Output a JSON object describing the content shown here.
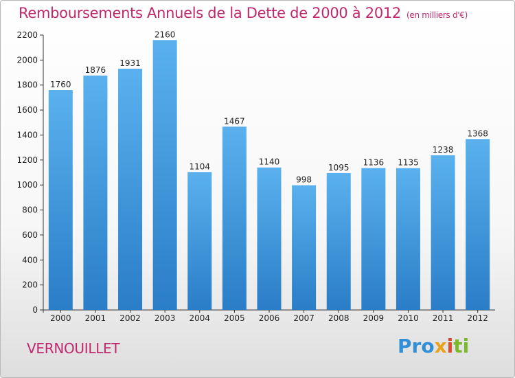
{
  "title": "Remboursements Annuels de la Dette de 2000 à 2012",
  "unit_label": "(en milliers d'€)",
  "place_name": "VERNOUILLET",
  "logo": {
    "parts": [
      "Pro",
      "x",
      "i",
      "ti"
    ],
    "alt": "Proxiti"
  },
  "colors": {
    "title": "#c0286c",
    "bar_top": "#5ab1ee",
    "bar_bottom": "#2a7dc7"
  },
  "chart_data": {
    "type": "bar",
    "categories": [
      "2000",
      "2001",
      "2002",
      "2003",
      "2004",
      "2005",
      "2006",
      "2007",
      "2008",
      "2009",
      "2010",
      "2011",
      "2012"
    ],
    "values": [
      1760,
      1876,
      1931,
      2160,
      1104,
      1467,
      1140,
      998,
      1095,
      1136,
      1135,
      1238,
      1368
    ],
    "title": "Remboursements Annuels de la Dette de 2000 à 2012",
    "xlabel": "",
    "ylabel": "",
    "ylim": [
      0,
      2200
    ],
    "yticks": [
      0,
      200,
      400,
      600,
      800,
      1000,
      1200,
      1400,
      1600,
      1800,
      2000,
      2200
    ],
    "grid": false,
    "data_labels": true
  }
}
